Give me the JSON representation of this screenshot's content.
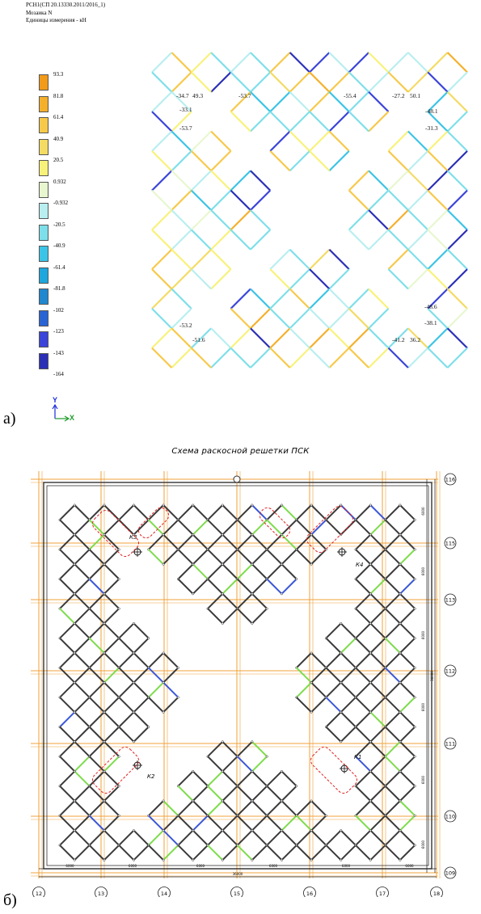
{
  "header": {
    "line1": "РСН1(СП 20.13330.2011/2016_1)",
    "line2": "Мозаика N",
    "line3": "Единицы измерения - кН"
  },
  "legend": {
    "values": [
      "93.3",
      "81.8",
      "61.4",
      "40.9",
      "20.5",
      "0.932",
      "-0.932",
      "-20.5",
      "-40.9",
      "-61.4",
      "-81.8",
      "-102",
      "-123",
      "-143",
      "-164"
    ],
    "colors": [
      "#f29a1a",
      "#f5b02b",
      "#f7c94a",
      "#f4db64",
      "#f8f27a",
      "#e8f7cf",
      "#b9eef0",
      "#7edfea",
      "#3cc4e6",
      "#1fa6dc",
      "#2187cf",
      "#2a64d4",
      "#3b44d8",
      "#2b2fb6",
      "#0f106c"
    ]
  },
  "axis": {
    "y": "Y",
    "x": "X"
  },
  "labels": {
    "a": "а)",
    "b": "б)"
  },
  "mosaic_values": [
    "-34.7",
    "49.3",
    "-53.7",
    "-55.4",
    "-27.2",
    "50.1",
    "-33.1",
    "-53.7",
    "-48.1",
    "-31.3",
    "-48.6",
    "-38.1",
    "-53.2",
    "-51.6",
    "-41.2",
    "36.2"
  ],
  "scheme": {
    "title": "Схема раскосной решетки ПСК",
    "row_axes": [
      "116",
      "115",
      "113",
      "112",
      "111",
      "110",
      "109"
    ],
    "col_axes": [
      "12",
      "13",
      "14",
      "15",
      "16",
      "17",
      "18"
    ],
    "col_dims": [
      "6000",
      "6000",
      "6000",
      "6000",
      "6000",
      "6000"
    ],
    "total_dim": "36000",
    "row_dims": [
      "6000",
      "6000",
      "6000",
      "6000",
      "6000",
      "6000"
    ],
    "total_row_dim": "36000",
    "nodes": [
      "К3",
      "К4",
      "К2",
      "К1"
    ]
  }
}
